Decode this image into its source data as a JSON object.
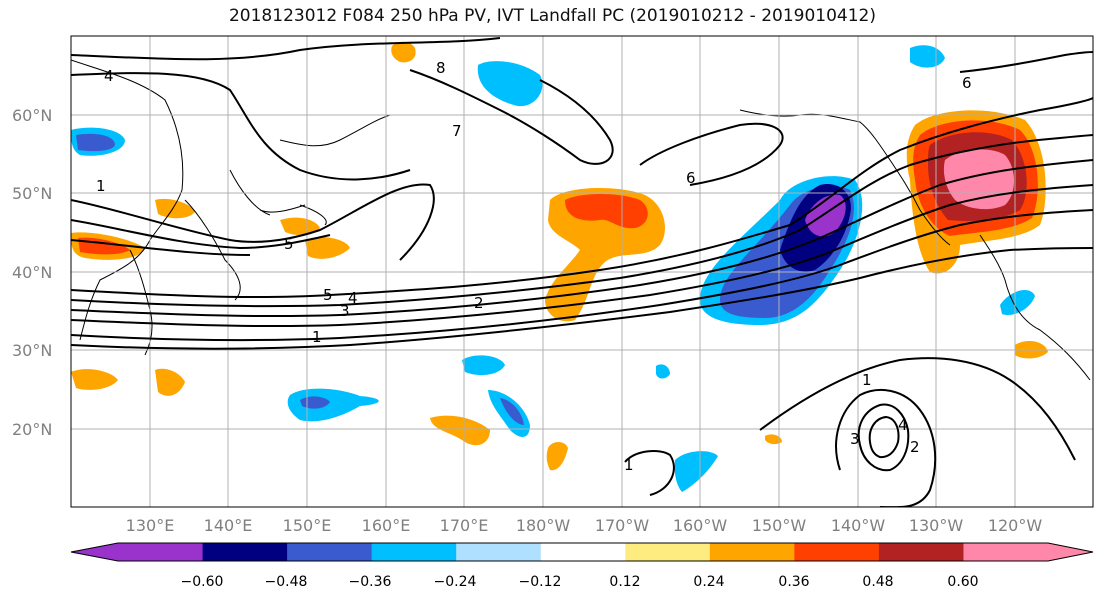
{
  "title": "2018123012 F084 250 hPa PV, IVT Landfall PC (2019010212 - 2019010412)",
  "lat_labels": [
    "60°N",
    "50°N",
    "40°N",
    "30°N",
    "20°N"
  ],
  "lon_labels": [
    "130°E",
    "140°E",
    "150°E",
    "160°E",
    "170°E",
    "180°W",
    "170°W",
    "160°W",
    "150°W",
    "140°W",
    "130°W",
    "120°W"
  ],
  "colorbar": {
    "ticks": [
      "−0.60",
      "−0.48",
      "−0.36",
      "−0.24",
      "−0.12",
      "0.12",
      "0.24",
      "0.36",
      "0.48",
      "0.60"
    ],
    "colors": [
      "#9933cc",
      "#000080",
      "#3a5bd0",
      "#00bfff",
      "#b0e0ff",
      "#ffffff",
      "#ffec80",
      "#ffa500",
      "#ff4000",
      "#b22222",
      "#ff88aa"
    ]
  },
  "contour_labels": [
    "4",
    "1",
    "5",
    "8",
    "7",
    "6",
    "6",
    "5",
    "4",
    "3",
    "2",
    "1",
    "1",
    "1",
    "2",
    "3",
    "4"
  ],
  "colors": {
    "grid": "#b0b0b0",
    "tick_label": "#808080",
    "contour": "#000000"
  }
}
